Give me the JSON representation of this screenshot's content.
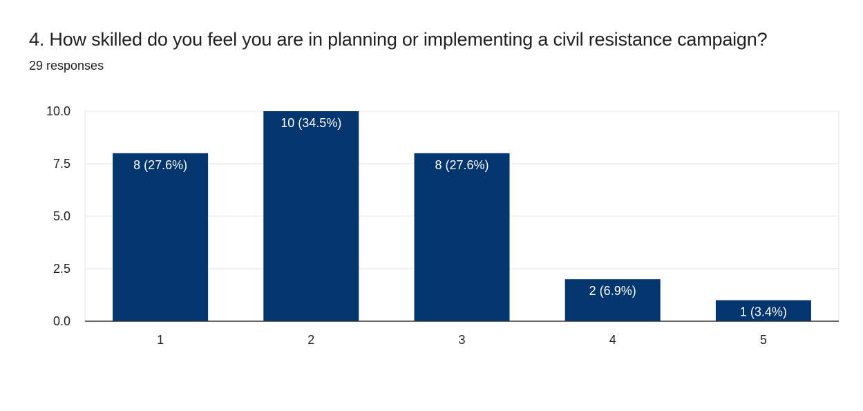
{
  "question": {
    "title": "4. How skilled do you feel you are in planning or implementing a civil resistance campaign?",
    "response_count": "29 responses"
  },
  "colors": {
    "bar": "#03366f",
    "grid": "#e6e6e6",
    "axis": "#333333"
  },
  "chart_data": {
    "type": "bar",
    "categories": [
      "1",
      "2",
      "3",
      "4",
      "5"
    ],
    "values": [
      8,
      10,
      8,
      2,
      1
    ],
    "data_labels": [
      "8 (27.6%)",
      "10 (34.5%)",
      "8 (27.6%)",
      "2 (6.9%)",
      "1 (3.4%)"
    ],
    "y_ticks": [
      "0.0",
      "2.5",
      "5.0",
      "7.5",
      "10.0"
    ],
    "y_tick_values": [
      0,
      2.5,
      5,
      7.5,
      10
    ],
    "ylim": [
      0,
      10
    ],
    "grid": true,
    "legend": "none"
  }
}
